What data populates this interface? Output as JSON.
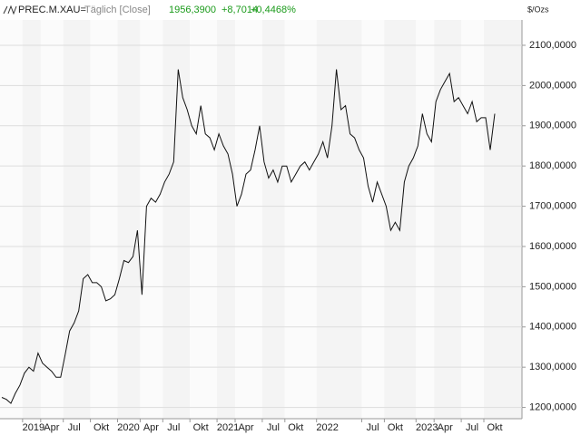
{
  "header": {
    "symbol": "PREC.M.XAU=",
    "period": "Täglich [Close]",
    "last": "1956,3900",
    "change": "+8,7014",
    "change_pct": "+0,4468%"
  },
  "chart_data": {
    "type": "line",
    "title": "PREC.M.XAU=",
    "unit_label": "$/Ozs",
    "color": "#111111",
    "categories": [
      null,
      null,
      null,
      null,
      null,
      null,
      null,
      "2019",
      null,
      null,
      null,
      "Apr",
      null,
      null,
      null,
      null,
      "Jul",
      null,
      null,
      null,
      null,
      null,
      "Okt",
      null,
      null,
      null,
      null,
      null,
      "2020",
      null,
      null,
      null,
      null,
      "Apr",
      null,
      null,
      null,
      null,
      "Jul",
      null,
      null,
      null,
      null,
      null,
      "Okt",
      null,
      null,
      null,
      null,
      null,
      "2021",
      null,
      null,
      null,
      "Apr",
      null,
      null,
      null,
      null,
      null,
      "Jul",
      null,
      null,
      null,
      null,
      "Okt",
      null,
      null,
      null,
      null,
      null,
      null,
      "2022",
      null,
      null,
      null,
      null,
      null,
      null,
      null,
      null,
      null,
      "Jul",
      null,
      null,
      null,
      null,
      "Okt",
      null,
      null,
      null,
      null,
      null,
      null,
      "2023",
      null,
      null,
      null,
      "Apr",
      null,
      null,
      null,
      null,
      null,
      "Jul",
      null,
      null,
      null,
      null,
      "Okt"
    ],
    "values": [
      1225,
      1220,
      1210,
      1235,
      1255,
      1285,
      1300,
      1290,
      1335,
      1310,
      1300,
      1290,
      1275,
      1275,
      1330,
      1390,
      1410,
      1440,
      1520,
      1530,
      1510,
      1510,
      1500,
      1465,
      1470,
      1480,
      1520,
      1565,
      1560,
      1575,
      1640,
      1480,
      1700,
      1720,
      1710,
      1730,
      1760,
      1780,
      1810,
      2040,
      1970,
      1940,
      1900,
      1880,
      1950,
      1880,
      1870,
      1840,
      1880,
      1850,
      1830,
      1780,
      1700,
      1730,
      1780,
      1790,
      1840,
      1900,
      1810,
      1770,
      1790,
      1760,
      1800,
      1800,
      1760,
      1780,
      1800,
      1810,
      1790,
      1810,
      1830,
      1860,
      1820,
      1900,
      2040,
      1940,
      1950,
      1880,
      1870,
      1840,
      1820,
      1750,
      1710,
      1760,
      1730,
      1700,
      1640,
      1660,
      1640,
      1760,
      1800,
      1820,
      1850,
      1930,
      1880,
      1860,
      1960,
      1990,
      2010,
      2030,
      1960,
      1970,
      1950,
      1930,
      1960,
      1910,
      1920,
      1920,
      1840,
      1930
    ],
    "ylim": [
      1172,
      2163
    ],
    "yticks": [
      {
        "value": 1200,
        "label": "1200,0000"
      },
      {
        "value": 1300,
        "label": "1300,0000"
      },
      {
        "value": 1400,
        "label": "1400,0000"
      },
      {
        "value": 1500,
        "label": "1500,0000"
      },
      {
        "value": 1600,
        "label": "1600,0000"
      },
      {
        "value": 1700,
        "label": "1700,0000"
      },
      {
        "value": 1800,
        "label": "1800,0000"
      },
      {
        "value": 1900,
        "label": "1900,0000"
      },
      {
        "value": 2000,
        "label": "2000,0000"
      },
      {
        "value": 2100,
        "label": "2100,0000"
      }
    ],
    "grid": true
  }
}
